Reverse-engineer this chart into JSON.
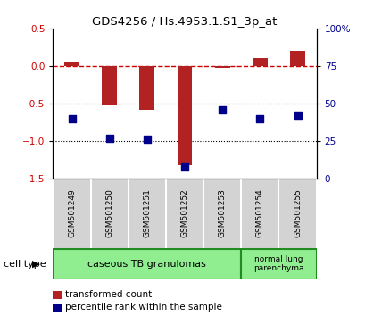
{
  "title": "GDS4256 / Hs.4953.1.S1_3p_at",
  "samples": [
    "GSM501249",
    "GSM501250",
    "GSM501251",
    "GSM501252",
    "GSM501253",
    "GSM501254",
    "GSM501255"
  ],
  "transformed_count": [
    0.05,
    -0.52,
    -0.58,
    -1.32,
    -0.02,
    0.1,
    0.2
  ],
  "percentile_rank": [
    40,
    27,
    26,
    8,
    46,
    40,
    42
  ],
  "ylim_left": [
    -1.5,
    0.5
  ],
  "ylim_right": [
    0,
    100
  ],
  "yticks_left": [
    0.5,
    0,
    -0.5,
    -1.0,
    -1.5
  ],
  "yticks_right": [
    100,
    75,
    50,
    25,
    0
  ],
  "bar_color": "#b22222",
  "square_color": "#00008b",
  "zero_line_color": "#cc0000",
  "dotted_line_color": "#000000",
  "group1_label": "caseous TB granulomas",
  "group2_label": "normal lung\nparenchyma",
  "group1_color": "#90ee90",
  "group2_color": "#90ee90",
  "sample_box_color": "#d3d3d3",
  "sample_box_border": "#aaaaaa",
  "group_border_color": "#228b22",
  "cell_type_label": "cell type",
  "legend1_label": "transformed count",
  "legend2_label": "percentile rank within the sample",
  "bg_color": "#ffffff"
}
